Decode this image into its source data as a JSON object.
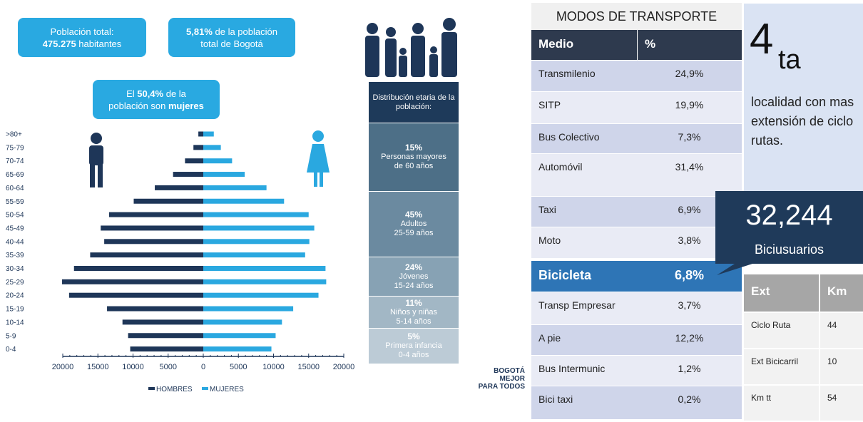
{
  "callouts": [
    {
      "lines": [
        [
          {
            "text": "Población total:",
            "bold": false
          }
        ],
        [
          {
            "text": "475.275",
            "bold": true
          },
          {
            "text": " habitantes",
            "bold": false
          }
        ]
      ]
    },
    {
      "lines": [
        [
          {
            "text": "5,81%",
            "bold": true
          },
          {
            "text": " de la población",
            "bold": false
          }
        ],
        [
          {
            "text": "total de Bogotá",
            "bold": false
          }
        ]
      ]
    },
    {
      "lines": [
        [
          {
            "text": "El ",
            "bold": false
          },
          {
            "text": "50,4%",
            "bold": true
          },
          {
            "text": " de la",
            "bold": false
          }
        ],
        [
          {
            "text": "población son ",
            "bold": false
          },
          {
            "text": "mujeres",
            "bold": true
          }
        ]
      ]
    }
  ],
  "chart_data": {
    "type": "pyramid",
    "categories": [
      ">80+",
      "75-79",
      "70-74",
      "65-69",
      "60-64",
      "55-59",
      "50-54",
      "45-49",
      "40-44",
      "35-39",
      "30-34",
      "25-29",
      "20-24",
      "15-19",
      "10-14",
      "5-9",
      "0-4"
    ],
    "series": [
      {
        "name": "HOMBRES",
        "color": "#1e3658",
        "side": "left",
        "values": [
          700,
          1400,
          2600,
          4300,
          6900,
          9900,
          13400,
          14600,
          14100,
          16100,
          18400,
          20100,
          19100,
          13700,
          11500,
          10700,
          10400
        ]
      },
      {
        "name": "MUJERES",
        "color": "#2aa8e0",
        "side": "right",
        "values": [
          1500,
          2500,
          4100,
          5900,
          9000,
          11500,
          15000,
          15800,
          15100,
          14500,
          17400,
          17500,
          16400,
          12800,
          11200,
          10300,
          9700
        ]
      }
    ],
    "xlim": [
      0,
      20000
    ],
    "xticks": [
      0,
      5000,
      10000,
      15000,
      20000
    ]
  },
  "age_distribution": {
    "title": "Distribución etaria de la población:",
    "groups": [
      {
        "percent": "15%",
        "lines": [
          "Personas mayores",
          "de 60 años"
        ]
      },
      {
        "percent": "45%",
        "lines": [
          "Adultos",
          "25-59 años"
        ]
      },
      {
        "percent": "24%",
        "lines": [
          "Jóvenes",
          "15-24 años"
        ]
      },
      {
        "percent": "11%",
        "lines": [
          "Niños y niñas",
          "5-14 años"
        ]
      },
      {
        "percent": "5%",
        "lines": [
          "Primera infancia",
          "0-4 años"
        ]
      }
    ]
  },
  "logo": {
    "lines": [
      "BOGOTÁ",
      "MEJOR",
      "PARA TODOS"
    ]
  },
  "transport": {
    "title": "MODOS DE TRANSPORTE",
    "header": [
      "Medio",
      "%"
    ],
    "rows": [
      [
        "Transmilenio",
        "24,9%"
      ],
      [
        "SITP",
        "19,9%"
      ],
      [
        "Bus Colectivo",
        "7,3%"
      ],
      [
        "Automóvil",
        "31,4%"
      ],
      [
        "Taxi",
        "6,9%"
      ],
      [
        "Moto",
        "3,8%"
      ],
      [
        "Bicicleta",
        "6,8%"
      ],
      [
        "Transp Empresar",
        "3,7%"
      ],
      [
        "A pie",
        "12,2%"
      ],
      [
        "Bus Intermunic",
        "1,2%"
      ],
      [
        "Bici taxi",
        "0,2%"
      ]
    ],
    "highlight_row": 6
  },
  "rank": {
    "number": "4",
    "suffix": "ta",
    "text": "localidad con mas extensión de ciclo rutas."
  },
  "cyclists": {
    "value": "32,244",
    "label": "Biciusuarios"
  },
  "ext_table": {
    "header": [
      "Ext",
      "Km"
    ],
    "rows": [
      [
        "Ciclo Ruta",
        "44"
      ],
      [
        "Ext Bicicarril",
        "10"
      ],
      [
        "Km tt",
        "54"
      ]
    ]
  }
}
